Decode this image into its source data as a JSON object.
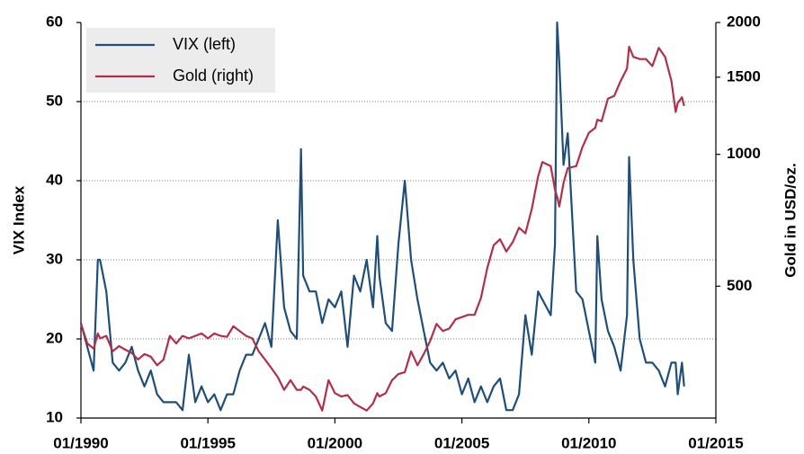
{
  "chart_data": {
    "type": "line",
    "y_label": "VIX Index",
    "y2_label": "Gold in USD/oz.",
    "x": [
      "01/1990",
      "04/1990",
      "07/1990",
      "09/1990",
      "10/1990",
      "01/1991",
      "04/1991",
      "07/1991",
      "10/1991",
      "01/1992",
      "04/1992",
      "07/1992",
      "10/1992",
      "01/1993",
      "04/1993",
      "07/1993",
      "10/1993",
      "01/1994",
      "04/1994",
      "07/1994",
      "10/1994",
      "01/1995",
      "04/1995",
      "07/1995",
      "10/1995",
      "01/1996",
      "04/1996",
      "07/1996",
      "10/1996",
      "01/1997",
      "04/1997",
      "07/1997",
      "10/1997",
      "01/1998",
      "04/1998",
      "07/1998",
      "09/1998",
      "10/1998",
      "01/1999",
      "04/1999",
      "07/1999",
      "10/1999",
      "01/2000",
      "04/2000",
      "07/2000",
      "10/2000",
      "01/2001",
      "04/2001",
      "07/2001",
      "09/2001",
      "10/2001",
      "01/2002",
      "04/2002",
      "07/2002",
      "10/2002",
      "01/2003",
      "04/2003",
      "07/2003",
      "10/2003",
      "01/2004",
      "04/2004",
      "07/2004",
      "10/2004",
      "01/2005",
      "04/2005",
      "07/2005",
      "10/2005",
      "01/2006",
      "04/2006",
      "07/2006",
      "10/2006",
      "01/2007",
      "04/2007",
      "07/2007",
      "10/2007",
      "01/2008",
      "03/2008",
      "07/2008",
      "09/2008",
      "10/2008",
      "11/2008",
      "01/2009",
      "03/2009",
      "07/2009",
      "10/2009",
      "01/2010",
      "04/2010",
      "05/2010",
      "07/2010",
      "10/2010",
      "01/2011",
      "04/2011",
      "07/2011",
      "08/2011",
      "10/2011",
      "01/2012",
      "04/2012",
      "07/2012",
      "10/2012",
      "01/2013",
      "04/2013",
      "06/2013",
      "07/2013",
      "09/2013",
      "10/2013"
    ],
    "series": [
      {
        "name": "VIX (left)",
        "color": "#1f4e79",
        "axis": "y",
        "values": [
          22,
          19,
          16,
          30,
          30,
          26,
          17,
          16,
          17,
          19,
          16,
          14,
          16,
          13,
          12,
          12,
          12,
          11,
          18,
          12,
          14,
          12,
          13,
          11,
          13,
          13,
          16,
          18,
          18,
          20,
          22,
          19,
          35,
          24,
          21,
          20,
          44,
          28,
          26,
          26,
          22,
          25,
          24,
          26,
          19,
          28,
          26,
          30,
          24,
          33,
          28,
          22,
          21,
          32,
          40,
          30,
          25,
          21,
          17,
          16,
          17,
          15,
          16,
          13,
          15,
          12,
          14,
          12,
          14,
          15,
          11,
          11,
          13,
          23,
          18,
          26,
          25,
          23,
          32,
          60,
          55,
          42,
          46,
          26,
          25,
          21,
          17,
          33,
          25,
          21,
          19,
          16,
          23,
          43,
          30,
          20,
          17,
          17,
          16,
          14,
          17,
          17,
          13,
          17,
          14
        ]
      },
      {
        "name": "Gold (right)",
        "color": "#b0304a",
        "axis": "y2",
        "values": [
          410,
          370,
          360,
          390,
          380,
          385,
          355,
          365,
          358,
          352,
          340,
          350,
          345,
          330,
          340,
          385,
          370,
          385,
          380,
          385,
          390,
          380,
          390,
          385,
          383,
          405,
          395,
          385,
          380,
          355,
          340,
          325,
          310,
          290,
          305,
          290,
          290,
          295,
          290,
          280,
          260,
          305,
          285,
          280,
          282,
          270,
          265,
          260,
          270,
          285,
          280,
          285,
          305,
          315,
          318,
          355,
          330,
          350,
          375,
          410,
          395,
          400,
          420,
          425,
          430,
          430,
          470,
          550,
          620,
          640,
          600,
          630,
          680,
          660,
          750,
          890,
          960,
          940,
          830,
          800,
          760,
          860,
          930,
          940,
          1040,
          1120,
          1150,
          1200,
          1190,
          1340,
          1360,
          1470,
          1570,
          1760,
          1670,
          1650,
          1650,
          1590,
          1750,
          1670,
          1470,
          1250,
          1310,
          1350,
          1290
        ]
      }
    ],
    "xlim": [
      "01/1990",
      "01/2015"
    ],
    "xticks": [
      "01/1990",
      "01/1995",
      "01/2000",
      "01/2005",
      "01/2010",
      "01/2015"
    ],
    "ylim": [
      10,
      60
    ],
    "yticks": [
      10,
      20,
      30,
      40,
      50,
      60
    ],
    "y2lim": [
      250,
      2000
    ],
    "y2ticks": [
      500,
      1000,
      1500,
      2000
    ],
    "y2_log": true,
    "grid": true,
    "legend": "upper left"
  }
}
